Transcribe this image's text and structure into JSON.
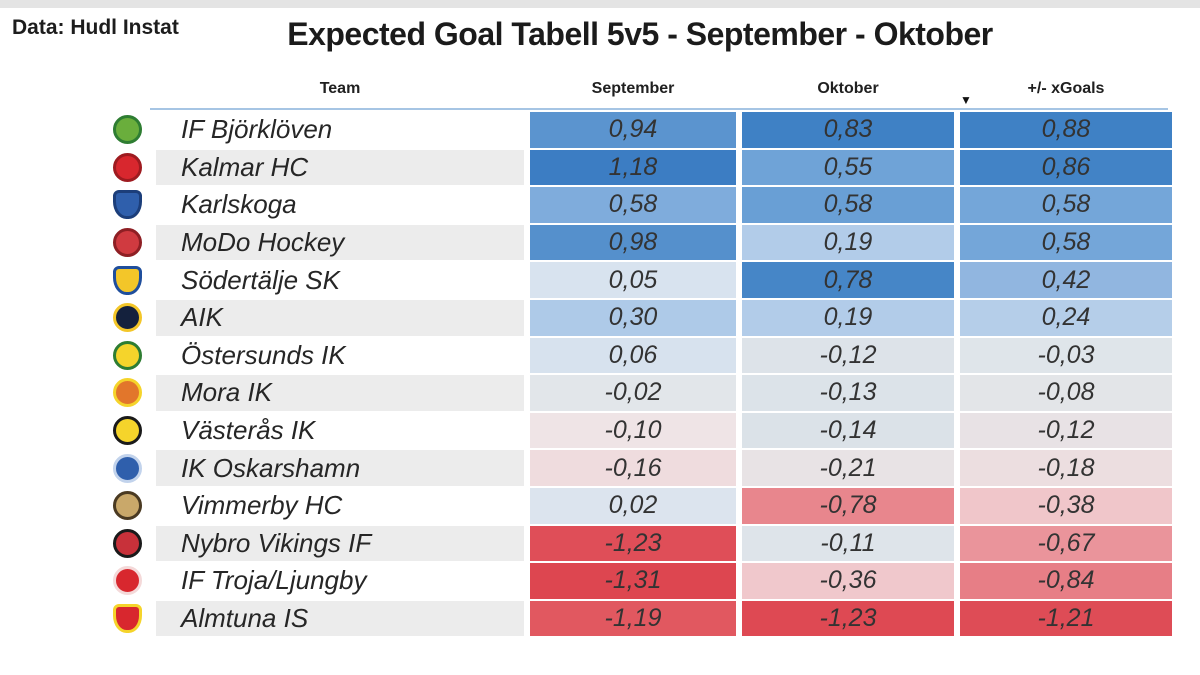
{
  "page": {
    "source_label": "Data: Hudl Instat",
    "title": "Expected Goal Tabell 5v5 - September - Oktober"
  },
  "table": {
    "columns": [
      "Team",
      "September",
      "Oktober",
      "+/- xGoals"
    ],
    "sort": {
      "column": "+/- xGoals",
      "direction": "descending",
      "icon": "▼"
    },
    "alt_row_color": "#ECECEC",
    "header_underline_color": "#A6C5E4",
    "rows": [
      {
        "team": "IF Björklöven",
        "logo": {
          "shape": "circle",
          "primary": "#6AAE3C",
          "secondary": "#2E7D32"
        },
        "cells": [
          {
            "text": "0,94",
            "bg": "#5B94CF"
          },
          {
            "text": "0,83",
            "bg": "#3F81C5"
          },
          {
            "text": "0,88",
            "bg": "#3F81C5"
          }
        ]
      },
      {
        "team": "Kalmar HC",
        "logo": {
          "shape": "circle",
          "primary": "#D8272E",
          "secondary": "#9E1B20"
        },
        "cells": [
          {
            "text": "1,18",
            "bg": "#3C7DC3"
          },
          {
            "text": "0,55",
            "bg": "#6FA3D7"
          },
          {
            "text": "0,86",
            "bg": "#4283C6"
          }
        ]
      },
      {
        "team": "Karlskoga",
        "logo": {
          "shape": "shield",
          "primary": "#2F5FAC",
          "secondary": "#1C3E7A"
        },
        "cells": [
          {
            "text": "0,58",
            "bg": "#7FACDC"
          },
          {
            "text": "0,58",
            "bg": "#699FD5"
          },
          {
            "text": "0,58",
            "bg": "#74A6D9"
          }
        ]
      },
      {
        "team": "MoDo Hockey",
        "logo": {
          "shape": "circle",
          "primary": "#D03A40",
          "secondary": "#8E1F24"
        },
        "cells": [
          {
            "text": "0,98",
            "bg": "#5590CC"
          },
          {
            "text": "0,19",
            "bg": "#B2CCE9"
          },
          {
            "text": "0,58",
            "bg": "#74A6D9"
          }
        ]
      },
      {
        "team": "Södertälje SK",
        "logo": {
          "shape": "shield",
          "primary": "#F3C629",
          "secondary": "#1F4E9C"
        },
        "cells": [
          {
            "text": "0,05",
            "bg": "#D8E3EF"
          },
          {
            "text": "0,78",
            "bg": "#4686C7"
          },
          {
            "text": "0,42",
            "bg": "#91B6E0"
          }
        ]
      },
      {
        "team": "AIK",
        "logo": {
          "shape": "circle",
          "primary": "#14213D",
          "secondary": "#F3C629"
        },
        "cells": [
          {
            "text": "0,30",
            "bg": "#AECAE8"
          },
          {
            "text": "0,19",
            "bg": "#B2CCE9"
          },
          {
            "text": "0,24",
            "bg": "#B5CEE9"
          }
        ]
      },
      {
        "team": "Östersunds IK",
        "logo": {
          "shape": "circle",
          "primary": "#F5D42B",
          "secondary": "#2E7D32"
        },
        "cells": [
          {
            "text": "0,06",
            "bg": "#D7E2EE"
          },
          {
            "text": "-0,12",
            "bg": "#DDE3E9"
          },
          {
            "text": "-0,03",
            "bg": "#DFE5EA"
          }
        ]
      },
      {
        "team": "Mora IK",
        "logo": {
          "shape": "circle",
          "primary": "#E2762B",
          "secondary": "#F5D42B"
        },
        "cells": [
          {
            "text": "-0,02",
            "bg": "#E2E6EA"
          },
          {
            "text": "-0,13",
            "bg": "#DCE3E9"
          },
          {
            "text": "-0,08",
            "bg": "#E3E5E8"
          }
        ]
      },
      {
        "team": "Västerås IK",
        "logo": {
          "shape": "circle",
          "primary": "#F5D42B",
          "secondary": "#1A1A1A"
        },
        "cells": [
          {
            "text": "-0,10",
            "bg": "#EFE4E6"
          },
          {
            "text": "-0,14",
            "bg": "#DBE2E8"
          },
          {
            "text": "-0,12",
            "bg": "#E8E2E5"
          }
        ]
      },
      {
        "team": "IK Oskarshamn",
        "logo": {
          "shape": "circle",
          "primary": "#2F5FAC",
          "secondary": "#C2D3EC"
        },
        "cells": [
          {
            "text": "-0,16",
            "bg": "#EFDCDE"
          },
          {
            "text": "-0,21",
            "bg": "#E8E3E5"
          },
          {
            "text": "-0,18",
            "bg": "#ECDEE0"
          }
        ]
      },
      {
        "team": "Vimmerby HC",
        "logo": {
          "shape": "circle",
          "primary": "#C9A86A",
          "secondary": "#4A3A22"
        },
        "cells": [
          {
            "text": "0,02",
            "bg": "#DCE4EE"
          },
          {
            "text": "-0,78",
            "bg": "#E8868D"
          },
          {
            "text": "-0,38",
            "bg": "#F0C6CA"
          }
        ]
      },
      {
        "team": "Nybro Vikings IF",
        "logo": {
          "shape": "circle",
          "primary": "#C8313A",
          "secondary": "#1A1A1A"
        },
        "cells": [
          {
            "text": "-1,23",
            "bg": "#DF4E58"
          },
          {
            "text": "-0,11",
            "bg": "#DEE4EA"
          },
          {
            "text": "-0,67",
            "bg": "#EA949B"
          }
        ]
      },
      {
        "team": "IF Troja/Ljungby",
        "logo": {
          "shape": "circle",
          "primary": "#D8272E",
          "secondary": "#F4D9D9"
        },
        "cells": [
          {
            "text": "-1,31",
            "bg": "#DD4650"
          },
          {
            "text": "-0,36",
            "bg": "#F0C8CC"
          },
          {
            "text": "-0,84",
            "bg": "#E77E86"
          }
        ]
      },
      {
        "team": "Almtuna IS",
        "logo": {
          "shape": "shield",
          "primary": "#D8272E",
          "secondary": "#F5D42B"
        },
        "cells": [
          {
            "text": "-1,19",
            "bg": "#E15860"
          },
          {
            "text": "-1,23",
            "bg": "#DE4953"
          },
          {
            "text": "-1,21",
            "bg": "#DE4C56"
          }
        ]
      }
    ]
  },
  "chart_data": {
    "type": "table",
    "title": "Expected Goal Tabell 5v5 - September - Oktober",
    "source": "Data: Hudl Instat",
    "categories": [
      "IF Björklöven",
      "Kalmar HC",
      "Karlskoga",
      "MoDo Hockey",
      "Södertälje SK",
      "AIK",
      "Östersunds IK",
      "Mora IK",
      "Västerås IK",
      "IK Oskarshamn",
      "Vimmerby HC",
      "Nybro Vikings IF",
      "IF Troja/Ljungby",
      "Almtuna IS"
    ],
    "series": [
      {
        "name": "September",
        "values": [
          0.94,
          1.18,
          0.58,
          0.98,
          0.05,
          0.3,
          0.06,
          -0.02,
          -0.1,
          -0.16,
          0.02,
          -1.23,
          -1.31,
          -1.19
        ]
      },
      {
        "name": "Oktober",
        "values": [
          0.83,
          0.55,
          0.58,
          0.19,
          0.78,
          0.19,
          -0.12,
          -0.13,
          -0.14,
          -0.21,
          -0.78,
          -0.11,
          -0.36,
          -1.23
        ]
      },
      {
        "name": "+/- xGoals",
        "values": [
          0.88,
          0.86,
          0.58,
          0.58,
          0.42,
          0.24,
          -0.03,
          -0.08,
          -0.12,
          -0.18,
          -0.38,
          -0.67,
          -0.84,
          -1.21
        ]
      }
    ],
    "sorted_by": "+/- xGoals descending",
    "color_scale": {
      "positive_max": "#3C7DC3",
      "center": "#EBEBEB",
      "negative_min": "#DC444E",
      "per_column_normalized": true
    },
    "decimal_format": "comma"
  }
}
